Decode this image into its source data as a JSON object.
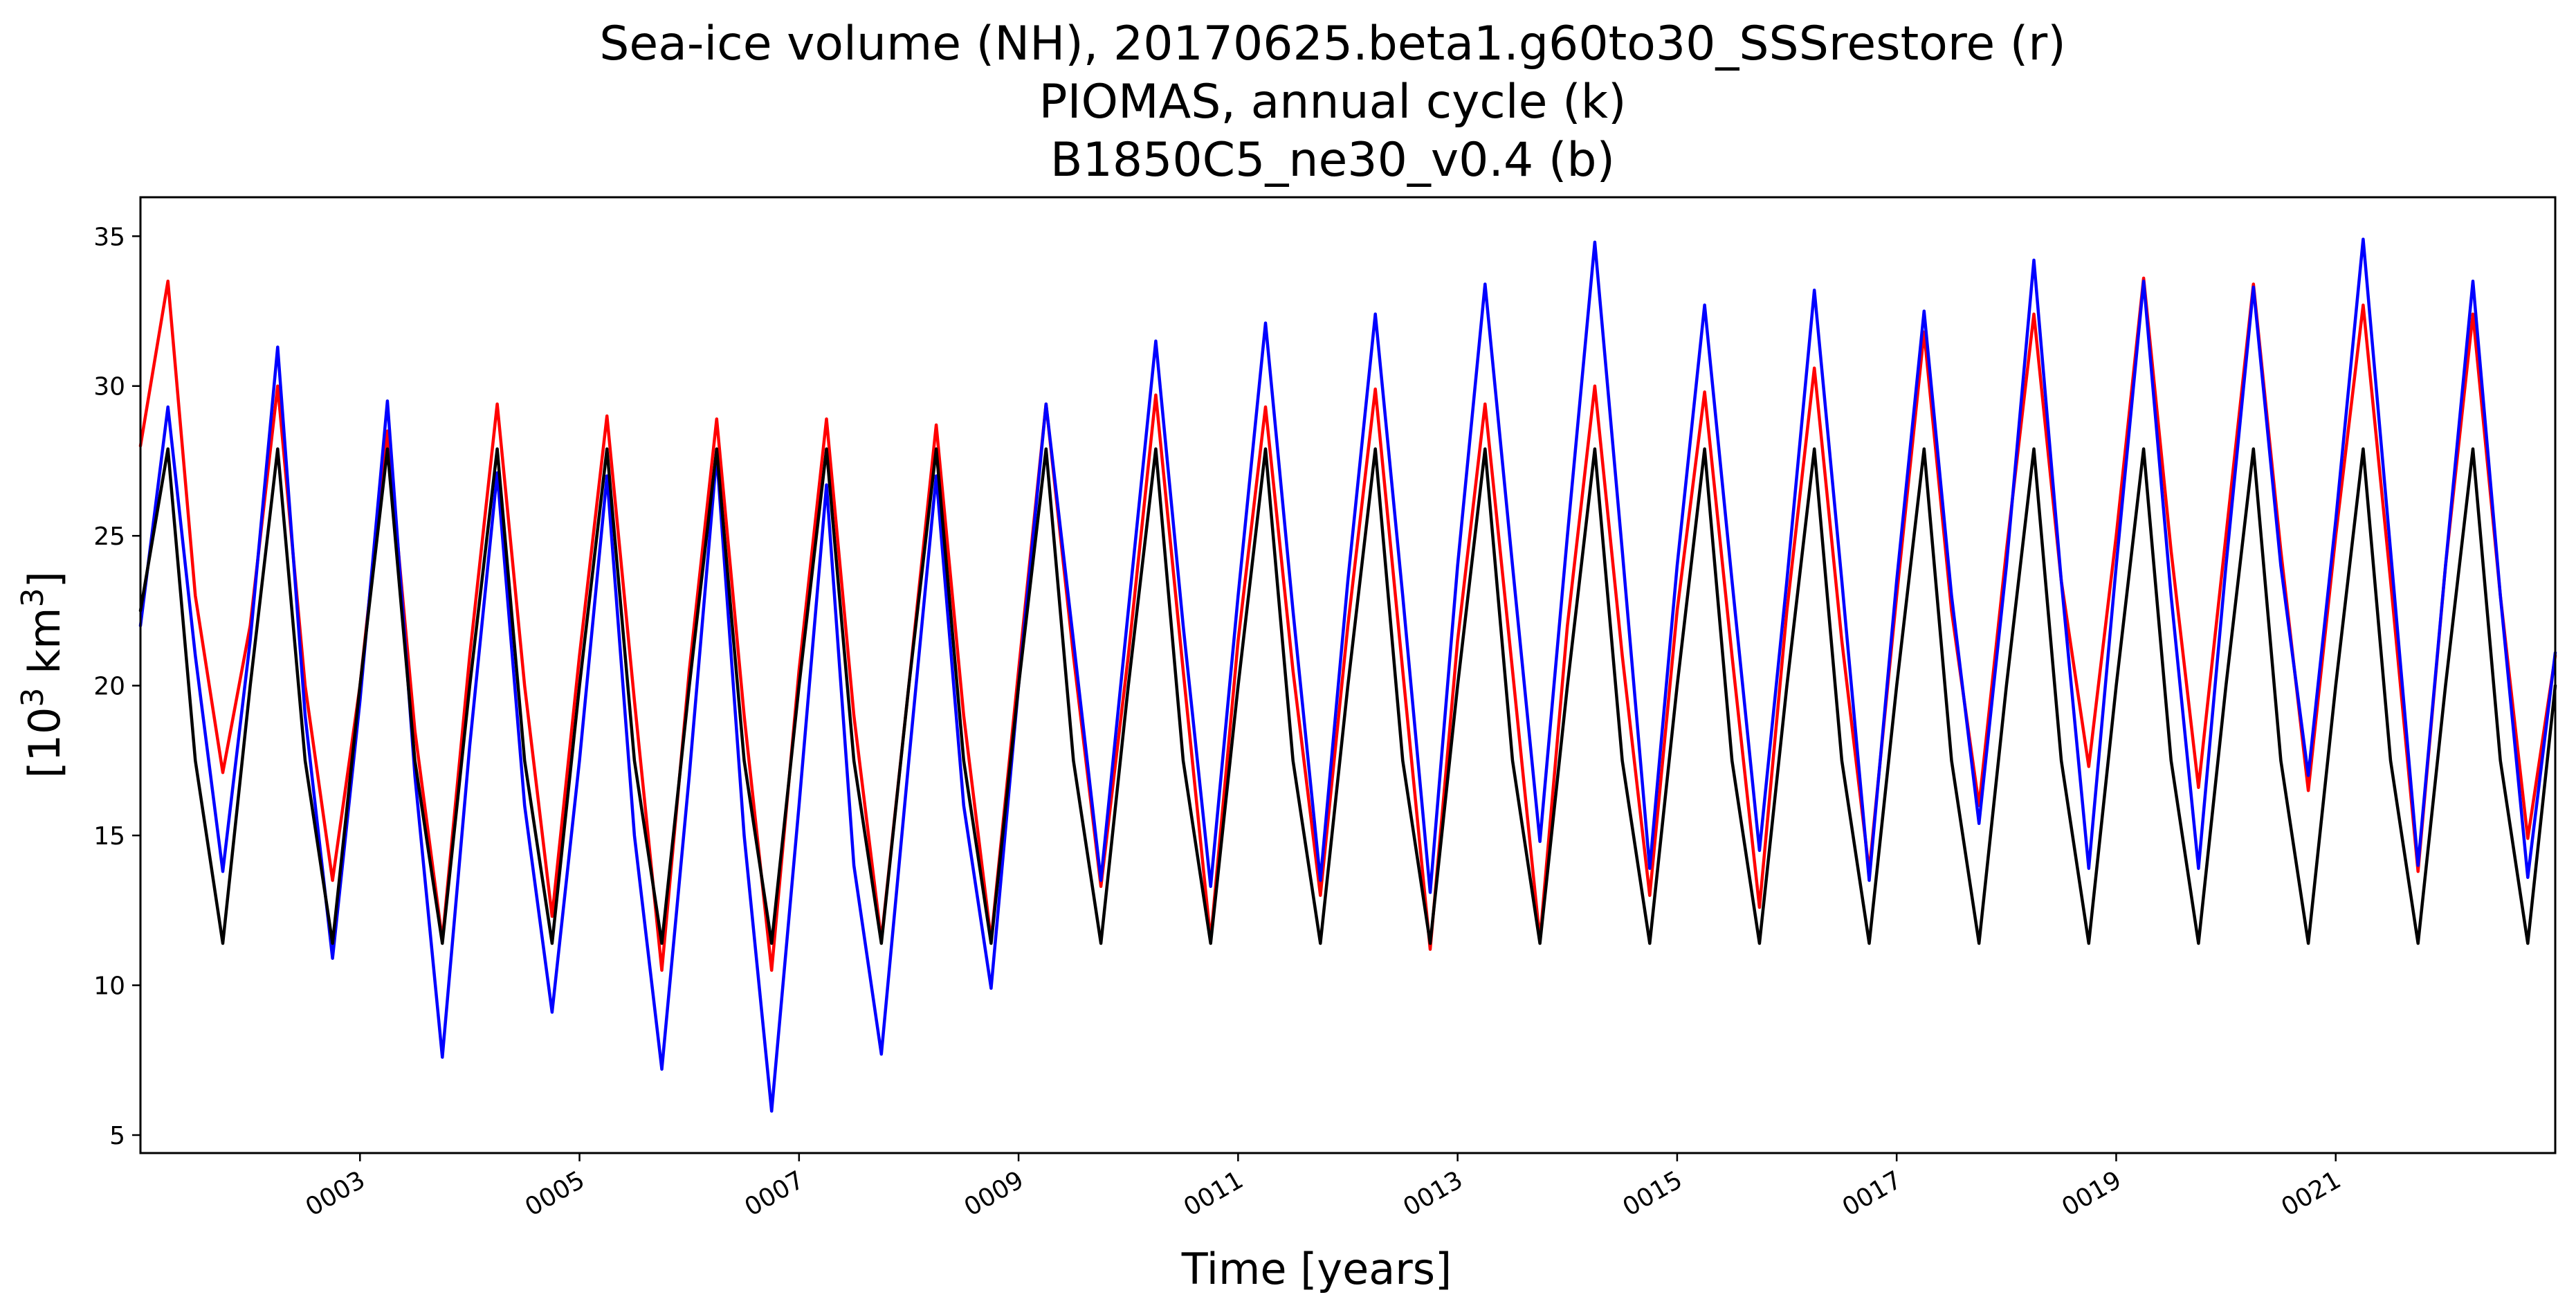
{
  "chart_data": {
    "type": "line",
    "title_lines": [
      "Sea-ice volume (NH), 20170625.beta1.g60to30_SSSrestore (r)",
      "PIOMAS, annual cycle (k)",
      "B1850C5_ne30_v0.4 (b)"
    ],
    "xlabel": "Time [years]",
    "ylabel": "[10",
    "ylabel_sup": "3",
    "ylabel_suffix": " km",
    "ylabel_sup2": "3",
    "ylabel_end": "]",
    "xlim": [
      1.0,
      23.0
    ],
    "ylim": [
      4.4,
      36.3
    ],
    "yticks": [
      5,
      10,
      15,
      20,
      25,
      30,
      35
    ],
    "ytick_labels": [
      "5",
      "10",
      "15",
      "20",
      "25",
      "30",
      "35"
    ],
    "xticks": [
      3.0,
      5.0,
      7.0,
      9.0,
      11.0,
      13.0,
      15.0,
      17.0,
      19.0,
      21.0
    ],
    "xtick_labels": [
      "0003",
      "0005",
      "0007",
      "0009",
      "0011",
      "0013",
      "0015",
      "0017",
      "0019",
      "0021"
    ],
    "grid": false,
    "legend": "none",
    "series": [
      {
        "color": "#ff0000",
        "x": [
          1.0,
          1.25,
          1.5,
          1.75,
          2.0,
          2.25,
          2.5,
          2.75,
          3.0,
          3.25,
          3.5,
          3.75,
          4.0,
          4.25,
          4.5,
          4.75,
          5.0,
          5.25,
          5.5,
          5.75,
          6.0,
          6.25,
          6.5,
          6.75,
          7.0,
          7.25,
          7.5,
          7.75,
          8.0,
          8.25,
          8.5,
          8.75,
          9.0,
          9.25,
          9.5,
          9.75,
          10.0,
          10.25,
          10.5,
          10.75,
          11.0,
          11.25,
          11.5,
          11.75,
          12.0,
          12.25,
          12.5,
          12.75,
          13.0,
          13.25,
          13.5,
          13.75,
          14.0,
          14.25,
          14.5,
          14.75,
          15.0,
          15.25,
          15.5,
          15.75,
          16.0,
          16.25,
          16.5,
          16.75,
          17.0,
          17.25,
          17.5,
          17.75,
          18.0,
          18.25,
          18.5,
          18.75,
          19.0,
          19.25,
          19.5,
          19.75,
          20.0,
          20.25,
          20.5,
          20.75,
          21.0,
          21.25,
          21.5,
          21.75,
          22.0,
          22.25,
          22.5,
          22.75,
          23.0
        ],
        "y": [
          28.0,
          33.5,
          23.0,
          17.1,
          22.0,
          30.0,
          20.0,
          13.5,
          20.0,
          28.5,
          18.5,
          11.5,
          21.0,
          29.4,
          20.0,
          12.3,
          21.0,
          29.0,
          19.5,
          10.5,
          20.5,
          28.9,
          19.0,
          10.5,
          20.5,
          28.9,
          19.0,
          11.5,
          20.0,
          28.7,
          19.0,
          11.5,
          20.5,
          29.4,
          21.0,
          13.3,
          21.0,
          29.7,
          20.5,
          11.5,
          21.5,
          29.3,
          20.5,
          13.0,
          22.0,
          29.9,
          20.5,
          11.2,
          21.5,
          29.4,
          20.5,
          11.5,
          22.0,
          30.0,
          21.0,
          13.0,
          22.5,
          29.8,
          21.0,
          12.6,
          22.5,
          30.6,
          21.5,
          13.8,
          23.0,
          31.8,
          22.5,
          16.0,
          24.5,
          32.4,
          23.5,
          17.3,
          25.0,
          33.6,
          24.5,
          16.6,
          25.0,
          33.4,
          24.5,
          16.5,
          25.0,
          32.7,
          23.5,
          13.8,
          24.0,
          32.4,
          23.0,
          14.9,
          21.0
        ]
      },
      {
        "color": "#0000ff",
        "x": [
          1.0,
          1.25,
          1.5,
          1.75,
          2.0,
          2.25,
          2.5,
          2.75,
          3.0,
          3.25,
          3.5,
          3.75,
          4.0,
          4.25,
          4.5,
          4.75,
          5.0,
          5.25,
          5.5,
          5.75,
          6.0,
          6.25,
          6.5,
          6.75,
          7.0,
          7.25,
          7.5,
          7.75,
          8.0,
          8.25,
          8.5,
          8.75,
          9.0,
          9.25,
          9.5,
          9.75,
          10.0,
          10.25,
          10.5,
          10.75,
          11.0,
          11.25,
          11.5,
          11.75,
          12.0,
          12.25,
          12.5,
          12.75,
          13.0,
          13.25,
          13.5,
          13.75,
          14.0,
          14.25,
          14.5,
          14.75,
          15.0,
          15.25,
          15.5,
          15.75,
          16.0,
          16.25,
          16.5,
          16.75,
          17.0,
          17.25,
          17.5,
          17.75,
          18.0,
          18.25,
          18.5,
          18.75,
          19.0,
          19.25,
          19.5,
          19.75,
          20.0,
          20.25,
          20.5,
          20.75,
          21.0,
          21.25,
          21.5,
          21.75,
          22.0,
          22.25,
          22.5,
          22.75,
          23.0
        ],
        "y": [
          22.0,
          29.3,
          21.0,
          13.8,
          21.5,
          31.3,
          19.0,
          10.9,
          19.5,
          29.5,
          17.0,
          7.6,
          18.0,
          27.1,
          16.0,
          9.1,
          17.5,
          27.0,
          15.0,
          7.2,
          17.0,
          27.7,
          15.0,
          5.8,
          16.0,
          26.7,
          14.0,
          7.7,
          17.5,
          27.0,
          16.0,
          9.9,
          20.0,
          29.4,
          21.5,
          13.5,
          22.5,
          31.5,
          22.0,
          13.3,
          23.0,
          32.1,
          22.5,
          13.5,
          23.5,
          32.4,
          23.0,
          13.1,
          24.0,
          33.4,
          24.0,
          14.8,
          25.0,
          34.8,
          24.5,
          13.9,
          24.0,
          32.7,
          23.5,
          14.5,
          23.5,
          33.2,
          23.5,
          13.5,
          23.5,
          32.5,
          23.0,
          15.4,
          24.0,
          34.2,
          23.5,
          13.9,
          24.0,
          33.5,
          23.0,
          13.9,
          24.0,
          33.3,
          24.0,
          17.0,
          25.5,
          34.9,
          24.5,
          14.0,
          24.0,
          33.5,
          23.0,
          13.6,
          21.1
        ]
      },
      {
        "color": "#000000",
        "x": [
          1.0,
          1.25,
          1.5,
          1.75,
          2.0,
          2.25,
          2.5,
          2.75,
          3.0,
          3.25,
          3.5,
          3.75,
          4.0,
          4.25,
          4.5,
          4.75,
          5.0,
          5.25,
          5.5,
          5.75,
          6.0,
          6.25,
          6.5,
          6.75,
          7.0,
          7.25,
          7.5,
          7.75,
          8.0,
          8.25,
          8.5,
          8.75,
          9.0,
          9.25,
          9.5,
          9.75,
          10.0,
          10.25,
          10.5,
          10.75,
          11.0,
          11.25,
          11.5,
          11.75,
          12.0,
          12.25,
          12.5,
          12.75,
          13.0,
          13.25,
          13.5,
          13.75,
          14.0,
          14.25,
          14.5,
          14.75,
          15.0,
          15.25,
          15.5,
          15.75,
          16.0,
          16.25,
          16.5,
          16.75,
          17.0,
          17.25,
          17.5,
          17.75,
          18.0,
          18.25,
          18.5,
          18.75,
          19.0,
          19.25,
          19.5,
          19.75,
          20.0,
          20.25,
          20.5,
          20.75,
          21.0,
          21.25,
          21.5,
          21.75,
          22.0,
          22.25,
          22.5,
          22.75,
          23.0
        ],
        "y": [
          22.5,
          27.9,
          17.5,
          11.4,
          20.0,
          27.9,
          17.5,
          11.4,
          20.0,
          27.9,
          17.5,
          11.4,
          20.0,
          27.9,
          17.5,
          11.4,
          20.0,
          27.9,
          17.5,
          11.4,
          20.0,
          27.9,
          17.5,
          11.4,
          20.0,
          27.9,
          17.5,
          11.4,
          20.0,
          27.9,
          17.5,
          11.4,
          20.0,
          27.9,
          17.5,
          11.4,
          20.0,
          27.9,
          17.5,
          11.4,
          20.0,
          27.9,
          17.5,
          11.4,
          20.0,
          27.9,
          17.5,
          11.4,
          20.0,
          27.9,
          17.5,
          11.4,
          20.0,
          27.9,
          17.5,
          11.4,
          20.0,
          27.9,
          17.5,
          11.4,
          20.0,
          27.9,
          17.5,
          11.4,
          20.0,
          27.9,
          17.5,
          11.4,
          20.0,
          27.9,
          17.5,
          11.4,
          20.0,
          27.9,
          17.5,
          11.4,
          20.0,
          27.9,
          17.5,
          11.4,
          20.0,
          27.9,
          17.5,
          11.4,
          20.0,
          27.9,
          17.5,
          11.4,
          20.0
        ]
      }
    ]
  }
}
